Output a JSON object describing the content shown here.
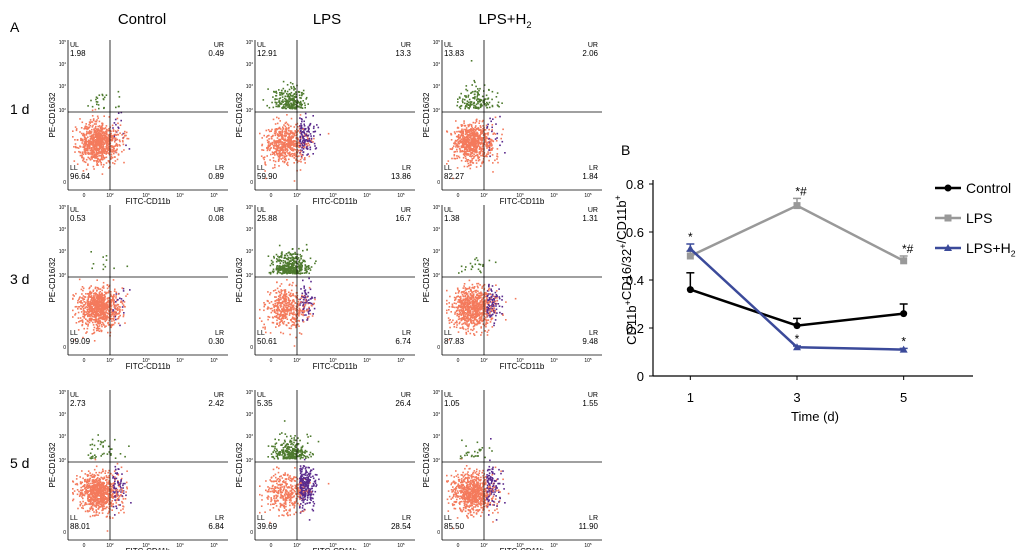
{
  "panel_a": {
    "label": "A",
    "columns": [
      {
        "text": "Control",
        "sub": ""
      },
      {
        "text": "LPS",
        "sub": ""
      },
      {
        "text": "LPS+H",
        "sub": "2"
      }
    ],
    "rows": [
      "1 d",
      "3 d",
      "5 d"
    ],
    "x_axis_label": "FITC-CD11b",
    "y_axis_label": "PE-CD16/32",
    "x_ticks": [
      "0",
      "10",
      "10",
      "10",
      "10"
    ],
    "x_tick_exps": [
      "",
      "2",
      "3",
      "4",
      "5"
    ],
    "y_ticks": [
      "0",
      "10",
      "10",
      "10",
      "10"
    ],
    "y_tick_exps": [
      "",
      "2",
      "3",
      "4",
      "5"
    ],
    "quadrant_names": {
      "ul": "UL",
      "ur": "UR",
      "ll": "LL",
      "lr": "LR"
    },
    "plots": [
      [
        {
          "ul": "1.98",
          "ur": "0.49",
          "ll": "96.64",
          "lr": "0.89"
        },
        {
          "ul": "12.91",
          "ur": "13.3",
          "ll": "59.90",
          "lr": "13.86"
        },
        {
          "ul": "13.83",
          "ur": "2.06",
          "ll": "82.27",
          "lr": "1.84"
        }
      ],
      [
        {
          "ul": "0.53",
          "ur": "0.08",
          "ll": "99.09",
          "lr": "0.30"
        },
        {
          "ul": "25.88",
          "ur": "16.7",
          "ll": "50.61",
          "lr": "6.74"
        },
        {
          "ul": "1.38",
          "ur": "1.31",
          "ll": "87.83",
          "lr": "9.48"
        }
      ],
      [
        {
          "ul": "2.73",
          "ur": "2.42",
          "ll": "88.01",
          "lr": "6.84"
        },
        {
          "ul": "5.35",
          "ur": "26.4",
          "ll": "39.69",
          "lr": "28.54"
        },
        {
          "ul": "1.05",
          "ur": "1.55",
          "ll": "85.50",
          "lr": "11.90"
        }
      ]
    ],
    "colors": {
      "ll": "#f47a5c",
      "lr": "#5a2a8c",
      "ul": "#4e7a2e",
      "ur": "#4e7a2e"
    }
  },
  "chart_data": {
    "type": "line",
    "label": "B",
    "x": [
      1,
      3,
      5
    ],
    "xlabel": "Time (d)",
    "ylabel": "CD11b",
    "ylabel_parts": [
      {
        "t": "CD11b",
        "sup": false
      },
      {
        "t": "+",
        "sup": true
      },
      {
        "t": "CD16/32",
        "sup": false
      },
      {
        "t": "+",
        "sup": true
      },
      {
        "t": "/CD11b",
        "sup": false
      },
      {
        "t": "+",
        "sup": true
      }
    ],
    "xlim": [
      0.3,
      6.3
    ],
    "ylim": [
      0,
      0.8
    ],
    "y_ticks": [
      0,
      0.2,
      0.4,
      0.6,
      0.8
    ],
    "y_tick_labels": [
      "0",
      "0.2",
      "0.4",
      "0.6",
      "0.8"
    ],
    "x_ticks": [
      1,
      3,
      5
    ],
    "x_tick_labels": [
      "1",
      "3",
      "5"
    ],
    "grid": false,
    "legend": "right",
    "series": [
      {
        "name": "Control",
        "name_sub": "",
        "color": "#000000",
        "marker": "circle",
        "values": [
          0.36,
          0.21,
          0.26
        ],
        "errors": [
          0.07,
          0.03,
          0.04
        ],
        "annotations": [
          "",
          "",
          ""
        ]
      },
      {
        "name": "LPS",
        "name_sub": "",
        "color": "#999999",
        "marker": "square",
        "values": [
          0.5,
          0.71,
          0.48
        ],
        "errors": [
          0.02,
          0.03,
          0.02
        ],
        "annotations": [
          "",
          "*#",
          "*#"
        ]
      },
      {
        "name": "LPS+H",
        "name_sub": "2",
        "color": "#3b4a9a",
        "marker": "triangle",
        "values": [
          0.53,
          0.12,
          0.11
        ],
        "errors": [
          0.02,
          0.005,
          0.005
        ],
        "annotations": [
          "*",
          "*",
          "*"
        ]
      }
    ]
  }
}
